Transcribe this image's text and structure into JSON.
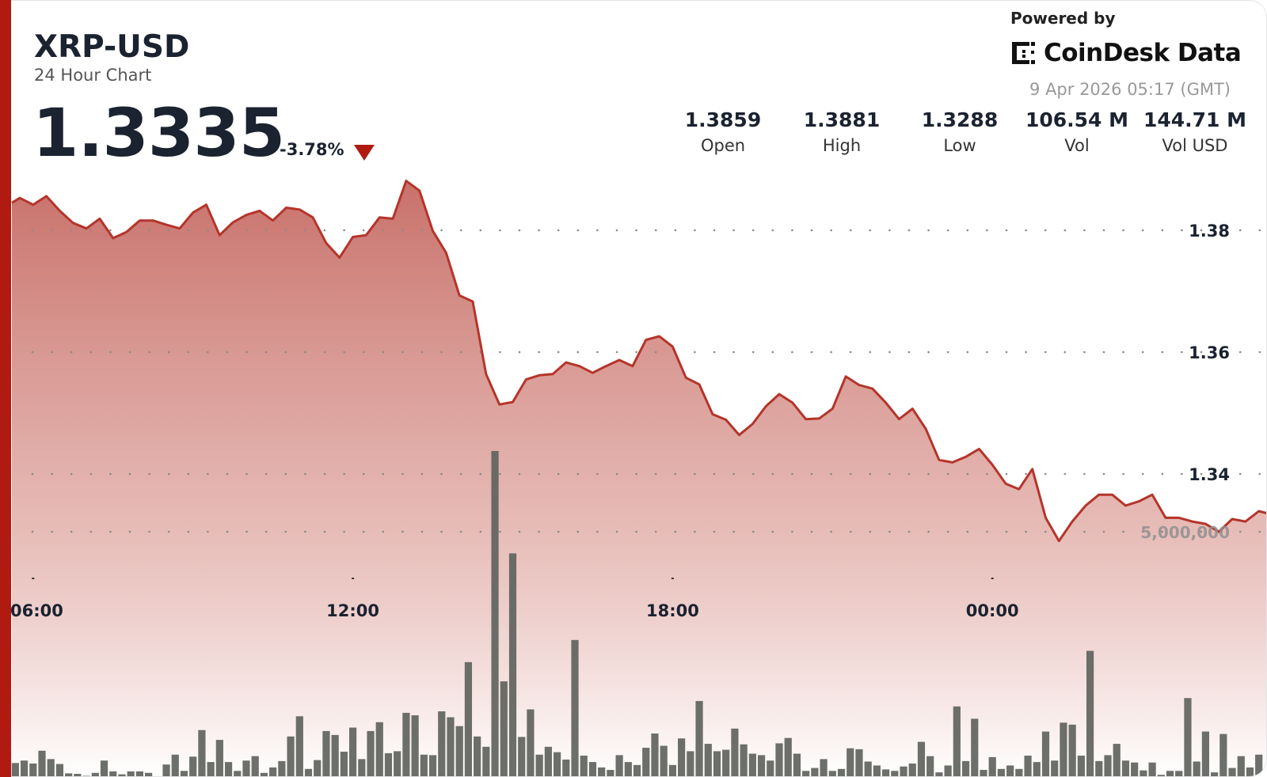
{
  "header": {
    "title": "XRP-USD",
    "subtitle": "24 Hour Chart",
    "price": "1.3335",
    "change": "-3.78%",
    "change_direction": "down-triangle-icon"
  },
  "stats": [
    {
      "value": "1.3859",
      "label": "Open"
    },
    {
      "value": "1.3881",
      "label": "High"
    },
    {
      "value": "1.3288",
      "label": "Low"
    },
    {
      "value": "106.54 M",
      "label": "Vol"
    },
    {
      "value": "144.71 M",
      "label": "Vol USD"
    }
  ],
  "branding": {
    "powered_by": "Powered by",
    "logo_text": "CoinDesk Data",
    "timestamp": "9 Apr 2026 05:17 (GMT)"
  },
  "colors": {
    "accent": "#b01a10",
    "line": "#b5342a",
    "fill_top": "#c4655e",
    "bars": "#5f635d"
  },
  "chart_data": {
    "type": "area",
    "grid": "dotted horizontal",
    "x_ticks": [
      "06:00",
      "12:00",
      "18:00",
      "00:00"
    ],
    "y_ticks": [
      "1.38",
      "1.36",
      "1.34"
    ],
    "y_range": [
      1.32,
      1.39
    ],
    "volume_tick": "5,000,000",
    "price": {
      "x": [
        "05:30",
        "05:45",
        "06:00",
        "06:15",
        "06:30",
        "06:45",
        "07:00",
        "07:15",
        "07:30",
        "07:45",
        "08:00",
        "08:15",
        "08:30",
        "08:45",
        "09:00",
        "09:15",
        "09:30",
        "09:45",
        "10:00",
        "10:15",
        "10:30",
        "10:45",
        "11:00",
        "11:15",
        "11:30",
        "11:45",
        "12:00",
        "12:15",
        "12:30",
        "12:45",
        "13:00",
        "13:15",
        "13:30",
        "13:45",
        "14:00",
        "14:15",
        "14:30",
        "14:45",
        "15:00",
        "15:15",
        "15:30",
        "15:45",
        "16:00",
        "16:15",
        "16:30",
        "16:45",
        "17:00",
        "17:15",
        "17:30",
        "17:45",
        "18:00",
        "18:15",
        "18:30",
        "18:45",
        "19:00",
        "19:15",
        "19:30",
        "19:45",
        "20:00",
        "20:15",
        "20:30",
        "20:45",
        "21:00",
        "21:15",
        "21:30",
        "21:45",
        "22:00",
        "22:15",
        "22:30",
        "22:45",
        "23:00",
        "23:15",
        "23:30",
        "23:45",
        "00:00",
        "00:15",
        "00:30",
        "00:45",
        "01:00",
        "01:15",
        "01:30",
        "01:45",
        "02:00",
        "02:15",
        "02:30",
        "02:45",
        "03:00",
        "03:15",
        "03:30",
        "03:45",
        "04:00",
        "04:15",
        "04:30",
        "04:45",
        "05:00",
        "05:15"
      ],
      "values": [
        1.3845,
        1.3853,
        1.3842,
        1.3856,
        1.3832,
        1.3812,
        1.3803,
        1.3819,
        1.3787,
        1.3797,
        1.3816,
        1.3816,
        1.3809,
        1.3803,
        1.3829,
        1.3842,
        1.3792,
        1.3813,
        1.3825,
        1.3832,
        1.3816,
        1.3837,
        1.3834,
        1.3821,
        1.3779,
        1.3755,
        1.3789,
        1.3792,
        1.3821,
        1.3819,
        1.3881,
        1.3865,
        1.3799,
        1.3763,
        1.3693,
        1.3683,
        1.3564,
        1.3514,
        1.3518,
        1.3555,
        1.3562,
        1.3564,
        1.3583,
        1.3577,
        1.3566,
        1.3577,
        1.3587,
        1.3577,
        1.362,
        1.3626,
        1.3609,
        1.3558,
        1.3547,
        1.3498,
        1.3489,
        1.3464,
        1.3482,
        1.3511,
        1.3531,
        1.3517,
        1.349,
        1.3491,
        1.3507,
        1.356,
        1.3546,
        1.354,
        1.3517,
        1.349,
        1.3507,
        1.3474,
        1.3423,
        1.3419,
        1.3428,
        1.3441,
        1.3415,
        1.3384,
        1.3375,
        1.3408,
        1.3328,
        1.329,
        1.3322,
        1.3348,
        1.3366,
        1.3366,
        1.3348,
        1.3355,
        1.3366,
        1.3328,
        1.3328,
        1.3322,
        1.3318,
        1.3305,
        1.3326,
        1.3322,
        1.3339,
        1.3335
      ]
    },
    "volume": {
      "x": [
        "05:40",
        "05:50",
        "06:00",
        "06:10",
        "06:20",
        "06:30",
        "06:40",
        "06:50",
        "07:00",
        "07:10",
        "07:20",
        "07:30",
        "07:40",
        "07:50",
        "08:00",
        "08:10",
        "08:20",
        "08:30",
        "08:40",
        "08:50",
        "09:00",
        "09:10",
        "09:20",
        "09:30",
        "09:40",
        "09:50",
        "10:00",
        "10:10",
        "10:20",
        "10:30",
        "10:40",
        "10:50",
        "11:00",
        "11:10",
        "11:20",
        "11:30",
        "11:40",
        "11:50",
        "12:00",
        "12:10",
        "12:20",
        "12:30",
        "12:40",
        "12:50",
        "13:00",
        "13:10",
        "13:20",
        "13:30",
        "13:40",
        "13:50",
        "14:00",
        "14:10",
        "14:20",
        "14:30",
        "14:40",
        "14:50",
        "15:00",
        "15:10",
        "15:20",
        "15:30",
        "15:40",
        "15:50",
        "16:00",
        "16:10",
        "16:20",
        "16:30",
        "16:40",
        "16:50",
        "17:00",
        "17:10",
        "17:20",
        "17:30",
        "17:40",
        "17:50",
        "18:00",
        "18:10",
        "18:20",
        "18:30",
        "18:40",
        "18:50",
        "19:00",
        "19:10",
        "19:20",
        "19:30",
        "19:40",
        "19:50",
        "20:00",
        "20:10",
        "20:20",
        "20:30",
        "20:40",
        "20:50",
        "21:00",
        "21:10",
        "21:20",
        "21:30",
        "21:40",
        "21:50",
        "22:00",
        "22:10",
        "22:20",
        "22:30",
        "22:40",
        "22:50",
        "23:00",
        "23:10",
        "23:20",
        "23:30",
        "23:40",
        "23:50",
        "00:00",
        "00:10",
        "00:20",
        "00:30",
        "00:40",
        "00:50",
        "01:00",
        "01:10",
        "01:20",
        "01:30",
        "01:40",
        "01:50",
        "02:00",
        "02:10",
        "02:20",
        "02:30",
        "02:40",
        "02:50",
        "03:00",
        "03:10",
        "03:20",
        "03:30",
        "03:40",
        "03:50",
        "04:00",
        "04:10",
        "04:20",
        "04:30",
        "04:40",
        "04:50",
        "05:00",
        "05:10"
      ],
      "values": [
        300000,
        350000,
        290000,
        550000,
        380000,
        280000,
        90000,
        80000,
        40000,
        100000,
        350000,
        130000,
        70000,
        130000,
        130000,
        100000,
        20000,
        270000,
        470000,
        140000,
        430000,
        970000,
        320000,
        770000,
        320000,
        140000,
        350000,
        440000,
        100000,
        210000,
        340000,
        840000,
        1250000,
        180000,
        360000,
        950000,
        870000,
        530000,
        1020000,
        380000,
        950000,
        1130000,
        500000,
        540000,
        1320000,
        1270000,
        470000,
        460000,
        1350000,
        1230000,
        1050000,
        2350000,
        840000,
        630000,
        6640000,
        1960000,
        4560000,
        830000,
        1390000,
        470000,
        630000,
        520000,
        370000,
        2800000,
        450000,
        320000,
        210000,
        160000,
        460000,
        320000,
        260000,
        610000,
        900000,
        650000,
        260000,
        800000,
        540000,
        1560000,
        690000,
        540000,
        570000,
        1000000,
        680000,
        490000,
        460000,
        350000,
        700000,
        810000,
        490000,
        140000,
        200000,
        380000,
        140000,
        180000,
        600000,
        580000,
        330000,
        250000,
        170000,
        140000,
        230000,
        290000,
        730000,
        440000,
        110000,
        250000,
        1450000,
        340000,
        1200000,
        160000,
        420000,
        180000,
        250000,
        180000,
        450000,
        320000,
        940000,
        350000,
        1120000,
        1080000,
        450000,
        2580000,
        340000,
        460000,
        690000,
        350000,
        310000,
        150000,
        310000,
        60000,
        140000,
        140000,
        1620000,
        330000,
        940000,
        110000,
        890000,
        200000,
        440000,
        210000,
        470000,
        70000
      ]
    }
  }
}
